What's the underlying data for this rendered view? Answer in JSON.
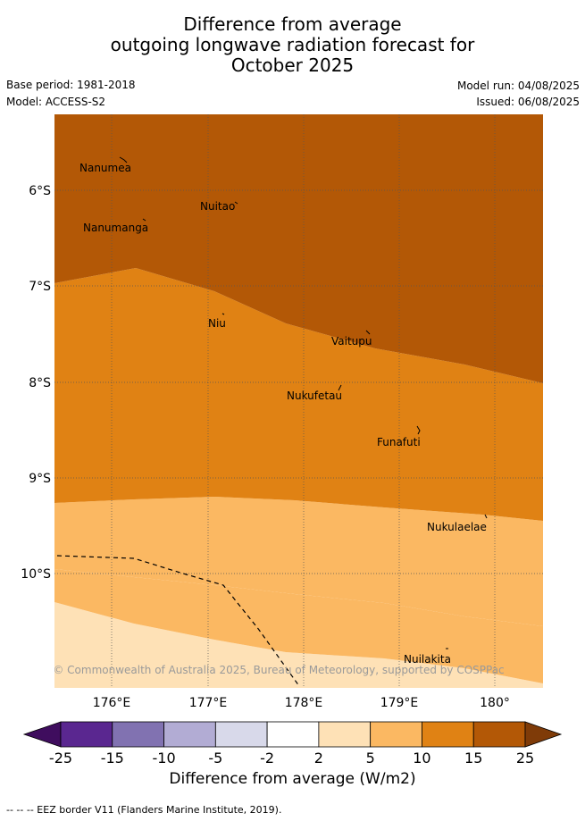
{
  "header": {
    "title_line1": "Difference from average",
    "title_line2": "outgoing longwave radiation forecast for",
    "title_line3": "October 2025",
    "base_period": "Base period: 1981-2018",
    "model": "Model: ACCESS-S2",
    "model_run": "Model run: 04/08/2025",
    "issued": "Issued: 06/08/2025"
  },
  "map": {
    "lon_labels": [
      "176°E",
      "177°E",
      "178°E",
      "179°E",
      "180°"
    ],
    "lat_labels": [
      "6°S",
      "7°S",
      "8°S",
      "9°S",
      "10°S"
    ],
    "places": [
      "Nanumea",
      "Nuitao",
      "Nanumanga",
      "Niu",
      "Vaitupu",
      "Nukufetau",
      "Funafuti",
      "Nukulaelae",
      "Nuilakita"
    ],
    "copyright": "© Commonwealth of Australia 2025, Bureau of Meteorology, supported by COSPPac"
  },
  "colorbar": {
    "ticks": [
      "-25",
      "-15",
      "-10",
      "-5",
      "-2",
      "2",
      "5",
      "10",
      "15",
      "25"
    ],
    "colors": [
      "#3f0d5e",
      "#5a2790",
      "#8172b1",
      "#b2acd4",
      "#d8d9ea",
      "#ffffff",
      "#fee1b6",
      "#fbb862",
      "#e08214",
      "#b35806",
      "#7f3b08"
    ],
    "label": "Difference from average (W/m2)"
  },
  "footer": {
    "note": "--  --  -- EEZ border V11 (Flanders Marine Institute, 2019)."
  }
}
